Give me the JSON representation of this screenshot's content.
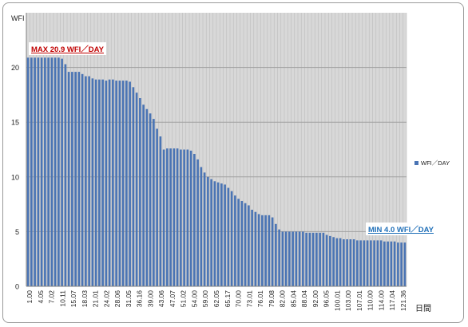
{
  "colors": {
    "bar": "#4a74b4",
    "grid": "#a0a0a0",
    "plot_bg": "#d8d8d8",
    "max_label": "#c00000",
    "min_label": "#1f6fb8"
  },
  "chart_data": {
    "type": "bar",
    "ylabel": "WFI",
    "xlabel": "日間",
    "ylim": [
      0,
      25
    ],
    "yticks": [
      "0",
      "5",
      "10",
      "15",
      "20"
    ],
    "legend": {
      "label": "WFI／DAY",
      "placement": "right"
    },
    "annotations": {
      "max": "MAX  20.9 WFI／DAY",
      "min": "MIN  4.0 WFI／DAY"
    },
    "grid": true,
    "x_tick_labels": [
      "1.00",
      "4.05",
      "7.02",
      "10.11",
      "15.07",
      "18.03",
      "21.01",
      "24.02",
      "28.06",
      "31.05",
      "36.16",
      "39.00",
      "43.06",
      "47.07",
      "51.02",
      "54.00",
      "59.00",
      "62.05",
      "65.17",
      "70.00",
      "73.01",
      "76.01",
      "79.08",
      "82.00",
      "85.04",
      "88.04",
      "92.00",
      "96.05",
      "100.01",
      "103.00",
      "107.01",
      "110.00",
      "114.00",
      "117.04",
      "121.36"
    ],
    "series": [
      {
        "name": "WFI／DAY",
        "values": [
          20.9,
          20.9,
          20.9,
          20.9,
          20.9,
          20.9,
          20.9,
          20.9,
          20.9,
          20.9,
          20.8,
          20.3,
          19.6,
          19.6,
          19.6,
          19.6,
          19.4,
          19.2,
          19.2,
          19.0,
          18.9,
          18.9,
          18.9,
          18.8,
          18.9,
          18.9,
          18.8,
          18.8,
          18.8,
          18.8,
          18.7,
          18.2,
          17.7,
          17.2,
          16.6,
          16.2,
          15.8,
          15.3,
          14.4,
          13.7,
          12.5,
          12.6,
          12.6,
          12.6,
          12.6,
          12.5,
          12.5,
          12.5,
          12.4,
          12.1,
          11.6,
          10.9,
          10.4,
          10.0,
          9.8,
          9.6,
          9.5,
          9.4,
          9.3,
          9.0,
          8.7,
          8.3,
          8.0,
          7.8,
          7.6,
          7.4,
          7.0,
          6.8,
          6.6,
          6.5,
          6.5,
          6.5,
          6.3,
          5.7,
          5.2,
          5.0,
          5.0,
          5.0,
          5.0,
          5.0,
          5.0,
          5.0,
          4.9,
          4.9,
          4.9,
          4.9,
          4.9,
          4.9,
          4.7,
          4.6,
          4.5,
          4.4,
          4.4,
          4.3,
          4.3,
          4.3,
          4.3,
          4.2,
          4.2,
          4.2,
          4.2,
          4.2,
          4.2,
          4.2,
          4.2,
          4.1,
          4.1,
          4.1,
          4.1,
          4.0,
          4.0,
          4.0
        ]
      }
    ]
  }
}
